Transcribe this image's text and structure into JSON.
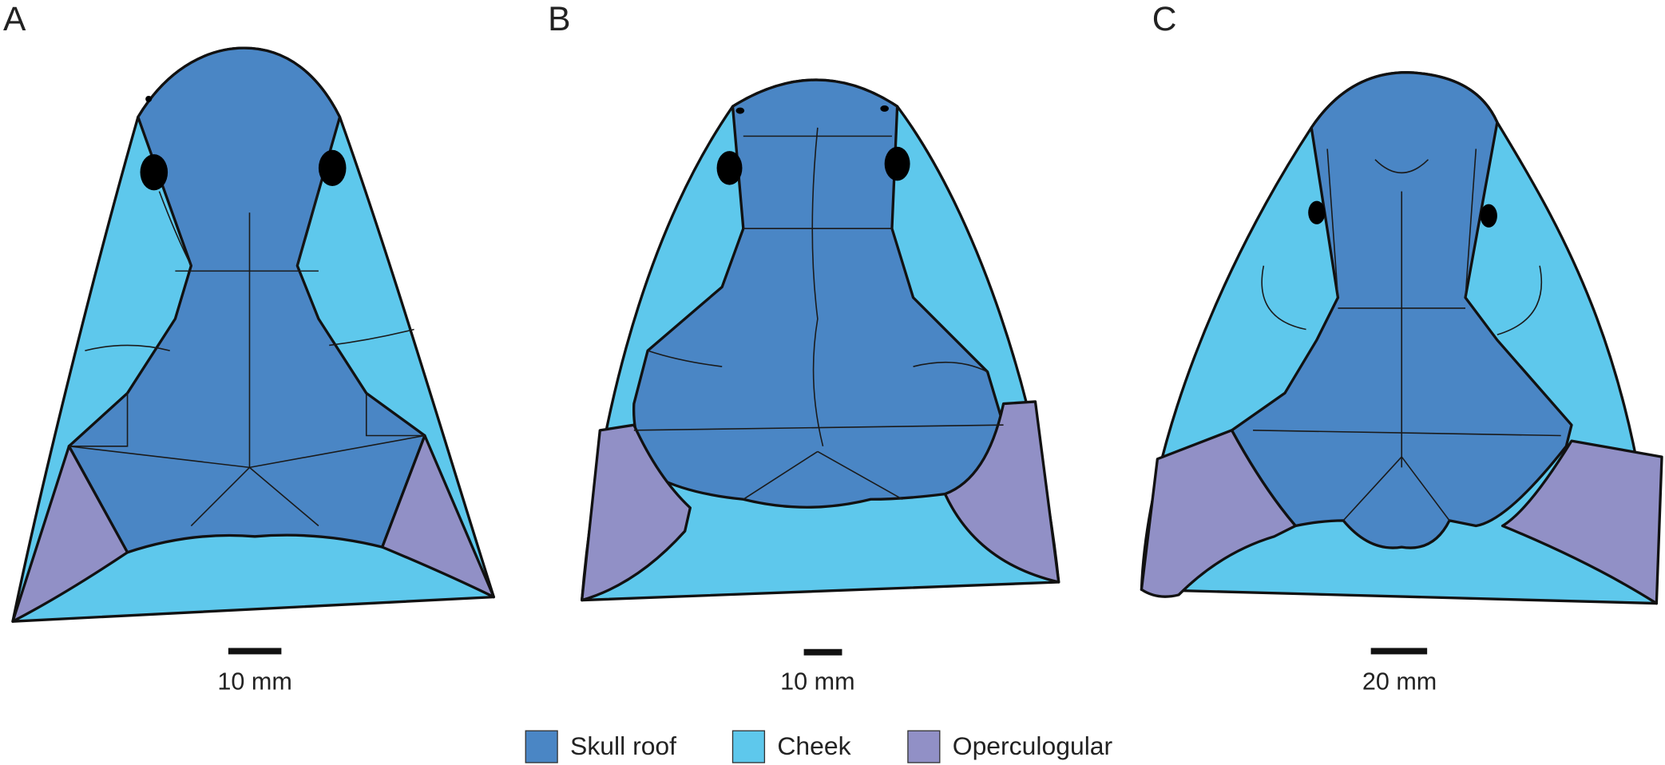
{
  "panels": [
    {
      "label": "A",
      "scale_bar": "10 mm"
    },
    {
      "label": "B",
      "scale_bar": "10 mm"
    },
    {
      "label": "C",
      "scale_bar": "20 mm"
    }
  ],
  "legend": [
    {
      "label": "Skull roof",
      "color": "#4a86c5"
    },
    {
      "label": "Cheek",
      "color": "#5ec8ec"
    },
    {
      "label": "Operculogular",
      "color": "#9190c6"
    }
  ]
}
